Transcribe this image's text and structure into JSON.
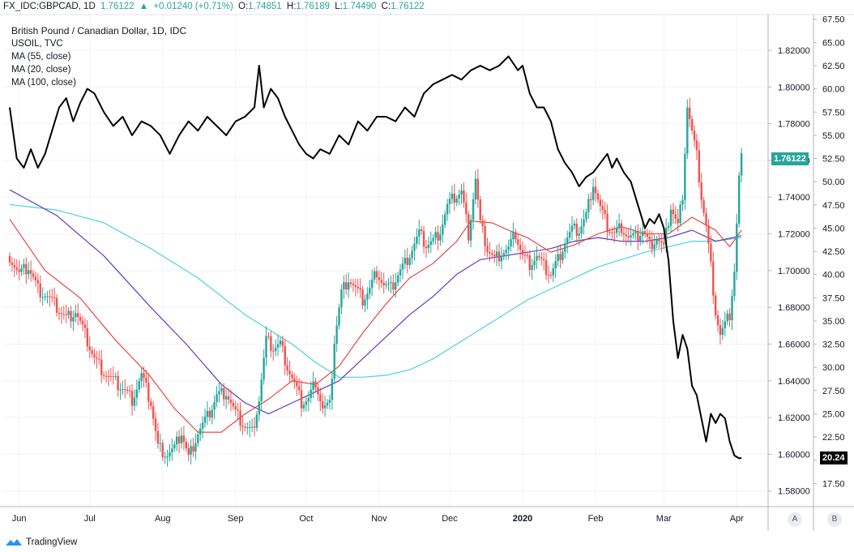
{
  "header": {
    "symbol": "FX_IDC:GBPCAD, 1D",
    "last": "1.76122",
    "change": "+0.01240 (+0.71%)",
    "o_label": "O:",
    "o_value": "1.74851",
    "h_label": "H:",
    "h_value": "1.76189",
    "l_label": "L:",
    "l_value": "1.74490",
    "c_label": "C:",
    "c_value": "1.76122"
  },
  "legend": {
    "title": "British Pound / Canadian Dollar, 1D, IDC",
    "overlay": "USOIL, TVC",
    "ma55": "MA (55, close)",
    "ma20": "MA (20, close)",
    "ma100": "MA (100, close)"
  },
  "footer": {
    "brand": "TradingView"
  },
  "scale_buttons": {
    "a": "A",
    "b": "B"
  },
  "colors": {
    "up": "#26a69a",
    "down": "#ef5350",
    "ma20": "#e53935",
    "ma55": "#673ab7",
    "ma100": "#4dd0e1",
    "oil": "#000000",
    "grid": "#f0f3fa"
  },
  "chart_data": {
    "type": "candlestick",
    "title": "British Pound / Canadian Dollar, 1D, IDC",
    "x_tick_labels": [
      "Jun",
      "Jul",
      "Aug",
      "Sep",
      "Oct",
      "Nov",
      "Dec",
      "2020",
      "Feb",
      "Mar",
      "Apr"
    ],
    "x_tick_days": [
      4,
      34,
      65,
      96,
      126,
      157,
      187,
      218,
      249,
      278,
      309
    ],
    "x_range_days": [
      0,
      312
    ],
    "left_axis": {
      "name": "GBPCAD",
      "ticks": [
        "1.82000",
        "1.80000",
        "1.78000",
        "1.76000",
        "1.74000",
        "1.72000",
        "1.70000",
        "1.68000",
        "1.66000",
        "1.64000",
        "1.62000",
        "1.60000",
        "1.58000"
      ],
      "range": [
        1.5715,
        1.8394
      ]
    },
    "right_axis": {
      "name": "USOIL",
      "ticks": [
        "67.50",
        "65.00",
        "62.50",
        "60.00",
        "57.50",
        "55.00",
        "52.50",
        "50.00",
        "47.50",
        "45.00",
        "42.50",
        "40.00",
        "37.50",
        "35.00",
        "32.50",
        "30.00",
        "27.50",
        "25.00",
        "22.50",
        "20.00",
        "17.50"
      ],
      "range": [
        15.0,
        68.0
      ]
    },
    "last_price_label": "1.76122",
    "last_oil_label": "20.24",
    "gbpcad_closes": [
      [
        0,
        1.708
      ],
      [
        4,
        1.698
      ],
      [
        8,
        1.702
      ],
      [
        12,
        1.69
      ],
      [
        16,
        1.686
      ],
      [
        20,
        1.68
      ],
      [
        24,
        1.674
      ],
      [
        28,
        1.678
      ],
      [
        32,
        1.665
      ],
      [
        36,
        1.652
      ],
      [
        40,
        1.645
      ],
      [
        44,
        1.64
      ],
      [
        48,
        1.636
      ],
      [
        52,
        1.63
      ],
      [
        56,
        1.643
      ],
      [
        60,
        1.628
      ],
      [
        63,
        1.604
      ],
      [
        67,
        1.6
      ],
      [
        70,
        1.603
      ],
      [
        73,
        1.612
      ],
      [
        76,
        1.598
      ],
      [
        80,
        1.612
      ],
      [
        84,
        1.62
      ],
      [
        88,
        1.632
      ],
      [
        92,
        1.634
      ],
      [
        96,
        1.622
      ],
      [
        100,
        1.615
      ],
      [
        103,
        1.612
      ],
      [
        106,
        1.63
      ],
      [
        109,
        1.662
      ],
      [
        112,
        1.658
      ],
      [
        115,
        1.66
      ],
      [
        118,
        1.648
      ],
      [
        121,
        1.638
      ],
      [
        124,
        1.628
      ],
      [
        127,
        1.63
      ],
      [
        130,
        1.64
      ],
      [
        133,
        1.625
      ],
      [
        136,
        1.626
      ],
      [
        138,
        1.662
      ],
      [
        141,
        1.688
      ],
      [
        144,
        1.696
      ],
      [
        147,
        1.69
      ],
      [
        150,
        1.684
      ],
      [
        153,
        1.69
      ],
      [
        156,
        1.7
      ],
      [
        159,
        1.692
      ],
      [
        162,
        1.69
      ],
      [
        165,
        1.698
      ],
      [
        168,
        1.704
      ],
      [
        171,
        1.712
      ],
      [
        174,
        1.72
      ],
      [
        177,
        1.714
      ],
      [
        180,
        1.716
      ],
      [
        183,
        1.722
      ],
      [
        186,
        1.735
      ],
      [
        189,
        1.74
      ],
      [
        192,
        1.743
      ],
      [
        195,
        1.72
      ],
      [
        198,
        1.75
      ],
      [
        200,
        1.725
      ],
      [
        203,
        1.712
      ],
      [
        206,
        1.706
      ],
      [
        209,
        1.71
      ],
      [
        212,
        1.712
      ],
      [
        215,
        1.72
      ],
      [
        218,
        1.708
      ],
      [
        221,
        1.704
      ],
      [
        224,
        1.708
      ],
      [
        227,
        1.702
      ],
      [
        230,
        1.698
      ],
      [
        233,
        1.706
      ],
      [
        236,
        1.716
      ],
      [
        239,
        1.722
      ],
      [
        242,
        1.722
      ],
      [
        245,
        1.73
      ],
      [
        248,
        1.748
      ],
      [
        251,
        1.734
      ],
      [
        254,
        1.724
      ],
      [
        257,
        1.72
      ],
      [
        260,
        1.724
      ],
      [
        263,
        1.718
      ],
      [
        266,
        1.718
      ],
      [
        269,
        1.722
      ],
      [
        272,
        1.714
      ],
      [
        275,
        1.718
      ],
      [
        278,
        1.712
      ],
      [
        281,
        1.735
      ],
      [
        284,
        1.724
      ],
      [
        286,
        1.742
      ],
      [
        288,
        1.79
      ],
      [
        290,
        1.775
      ],
      [
        292,
        1.762
      ],
      [
        294,
        1.74
      ],
      [
        296,
        1.724
      ],
      [
        298,
        1.702
      ],
      [
        300,
        1.678
      ],
      [
        302,
        1.665
      ],
      [
        304,
        1.67
      ],
      [
        306,
        1.676
      ],
      [
        308,
        1.7
      ],
      [
        309,
        1.725
      ],
      [
        310,
        1.75
      ],
      [
        311,
        1.761
      ]
    ],
    "ma20": [
      [
        0,
        1.728
      ],
      [
        15,
        1.7
      ],
      [
        30,
        1.685
      ],
      [
        45,
        1.662
      ],
      [
        60,
        1.642
      ],
      [
        70,
        1.625
      ],
      [
        80,
        1.612
      ],
      [
        90,
        1.612
      ],
      [
        100,
        1.622
      ],
      [
        110,
        1.63
      ],
      [
        120,
        1.64
      ],
      [
        130,
        1.638
      ],
      [
        140,
        1.648
      ],
      [
        150,
        1.666
      ],
      [
        160,
        1.682
      ],
      [
        170,
        1.696
      ],
      [
        180,
        1.704
      ],
      [
        190,
        1.716
      ],
      [
        196,
        1.727
      ],
      [
        205,
        1.726
      ],
      [
        212,
        1.722
      ],
      [
        220,
        1.718
      ],
      [
        230,
        1.71
      ],
      [
        240,
        1.714
      ],
      [
        250,
        1.72
      ],
      [
        260,
        1.724
      ],
      [
        270,
        1.72
      ],
      [
        280,
        1.72
      ],
      [
        290,
        1.729
      ],
      [
        300,
        1.722
      ],
      [
        306,
        1.713
      ],
      [
        311,
        1.722
      ]
    ],
    "ma55": [
      [
        0,
        1.744
      ],
      [
        20,
        1.73
      ],
      [
        40,
        1.708
      ],
      [
        60,
        1.68
      ],
      [
        75,
        1.66
      ],
      [
        90,
        1.638
      ],
      [
        100,
        1.628
      ],
      [
        110,
        1.622
      ],
      [
        120,
        1.628
      ],
      [
        130,
        1.634
      ],
      [
        140,
        1.64
      ],
      [
        150,
        1.652
      ],
      [
        160,
        1.664
      ],
      [
        170,
        1.676
      ],
      [
        180,
        1.686
      ],
      [
        190,
        1.698
      ],
      [
        200,
        1.706
      ],
      [
        210,
        1.708
      ],
      [
        220,
        1.71
      ],
      [
        230,
        1.712
      ],
      [
        240,
        1.716
      ],
      [
        250,
        1.718
      ],
      [
        260,
        1.716
      ],
      [
        270,
        1.716
      ],
      [
        280,
        1.718
      ],
      [
        290,
        1.722
      ],
      [
        300,
        1.716
      ],
      [
        311,
        1.719
      ]
    ],
    "ma100": [
      [
        0,
        1.736
      ],
      [
        20,
        1.733
      ],
      [
        40,
        1.726
      ],
      [
        60,
        1.712
      ],
      [
        80,
        1.696
      ],
      [
        100,
        1.676
      ],
      [
        120,
        1.66
      ],
      [
        130,
        1.65
      ],
      [
        140,
        1.642
      ],
      [
        150,
        1.642
      ],
      [
        160,
        1.643
      ],
      [
        170,
        1.646
      ],
      [
        180,
        1.652
      ],
      [
        190,
        1.66
      ],
      [
        200,
        1.668
      ],
      [
        210,
        1.676
      ],
      [
        220,
        1.684
      ],
      [
        230,
        1.69
      ],
      [
        240,
        1.696
      ],
      [
        250,
        1.702
      ],
      [
        260,
        1.706
      ],
      [
        270,
        1.71
      ],
      [
        280,
        1.713
      ],
      [
        290,
        1.716
      ],
      [
        300,
        1.716
      ],
      [
        311,
        1.718
      ]
    ],
    "usoil": [
      [
        0,
        58.0
      ],
      [
        3,
        52.5
      ],
      [
        6,
        51.5
      ],
      [
        9,
        53.5
      ],
      [
        12,
        51.5
      ],
      [
        15,
        53.0
      ],
      [
        18,
        55.5
      ],
      [
        21,
        58.0
      ],
      [
        24,
        59.0
      ],
      [
        27,
        56.5
      ],
      [
        30,
        58.5
      ],
      [
        33,
        60.0
      ],
      [
        36,
        59.5
      ],
      [
        40,
        57.5
      ],
      [
        44,
        56.0
      ],
      [
        48,
        57.0
      ],
      [
        52,
        55.0
      ],
      [
        56,
        56.5
      ],
      [
        60,
        56.0
      ],
      [
        64,
        55.0
      ],
      [
        68,
        53.0
      ],
      [
        72,
        55.0
      ],
      [
        76,
        56.5
      ],
      [
        80,
        55.5
      ],
      [
        84,
        57.0
      ],
      [
        88,
        56.0
      ],
      [
        92,
        55.0
      ],
      [
        96,
        56.5
      ],
      [
        100,
        57.0
      ],
      [
        104,
        58.0
      ],
      [
        106,
        62.5
      ],
      [
        108,
        58.0
      ],
      [
        111,
        60.0
      ],
      [
        114,
        59.0
      ],
      [
        117,
        57.0
      ],
      [
        120,
        55.5
      ],
      [
        123,
        54.0
      ],
      [
        126,
        53.0
      ],
      [
        129,
        52.5
      ],
      [
        132,
        53.5
      ],
      [
        136,
        53.0
      ],
      [
        140,
        55.0
      ],
      [
        144,
        54.0
      ],
      [
        148,
        56.5
      ],
      [
        152,
        55.5
      ],
      [
        156,
        57.0
      ],
      [
        160,
        57.0
      ],
      [
        164,
        56.5
      ],
      [
        168,
        58.0
      ],
      [
        172,
        57.0
      ],
      [
        176,
        59.5
      ],
      [
        180,
        60.5
      ],
      [
        184,
        61.0
      ],
      [
        188,
        61.5
      ],
      [
        192,
        61.0
      ],
      [
        196,
        62.0
      ],
      [
        200,
        62.5
      ],
      [
        204,
        62.0
      ],
      [
        208,
        62.5
      ],
      [
        212,
        63.5
      ],
      [
        216,
        62.0
      ],
      [
        218,
        62.5
      ],
      [
        221,
        59.5
      ],
      [
        224,
        58.0
      ],
      [
        227,
        58.0
      ],
      [
        230,
        56.5
      ],
      [
        233,
        53.5
      ],
      [
        236,
        52.0
      ],
      [
        239,
        51.0
      ],
      [
        242,
        49.5
      ],
      [
        245,
        50.5
      ],
      [
        248,
        51.0
      ],
      [
        251,
        52.0
      ],
      [
        254,
        53.0
      ],
      [
        256,
        51.5
      ],
      [
        258,
        52.5
      ],
      [
        261,
        51.0
      ],
      [
        264,
        50.0
      ],
      [
        267,
        47.5
      ],
      [
        270,
        45.0
      ],
      [
        272,
        46.0
      ],
      [
        274,
        45.5
      ],
      [
        276,
        46.5
      ],
      [
        278,
        45.0
      ],
      [
        280,
        41.5
      ],
      [
        282,
        35.0
      ],
      [
        284,
        31.0
      ],
      [
        286,
        33.5
      ],
      [
        288,
        32.0
      ],
      [
        290,
        28.0
      ],
      [
        292,
        27.0
      ],
      [
        294,
        24.5
      ],
      [
        296,
        22.0
      ],
      [
        298,
        25.0
      ],
      [
        300,
        24.0
      ],
      [
        302,
        25.0
      ],
      [
        304,
        24.5
      ],
      [
        306,
        22.0
      ],
      [
        308,
        20.5
      ],
      [
        310,
        20.2
      ],
      [
        311,
        20.24
      ]
    ]
  }
}
